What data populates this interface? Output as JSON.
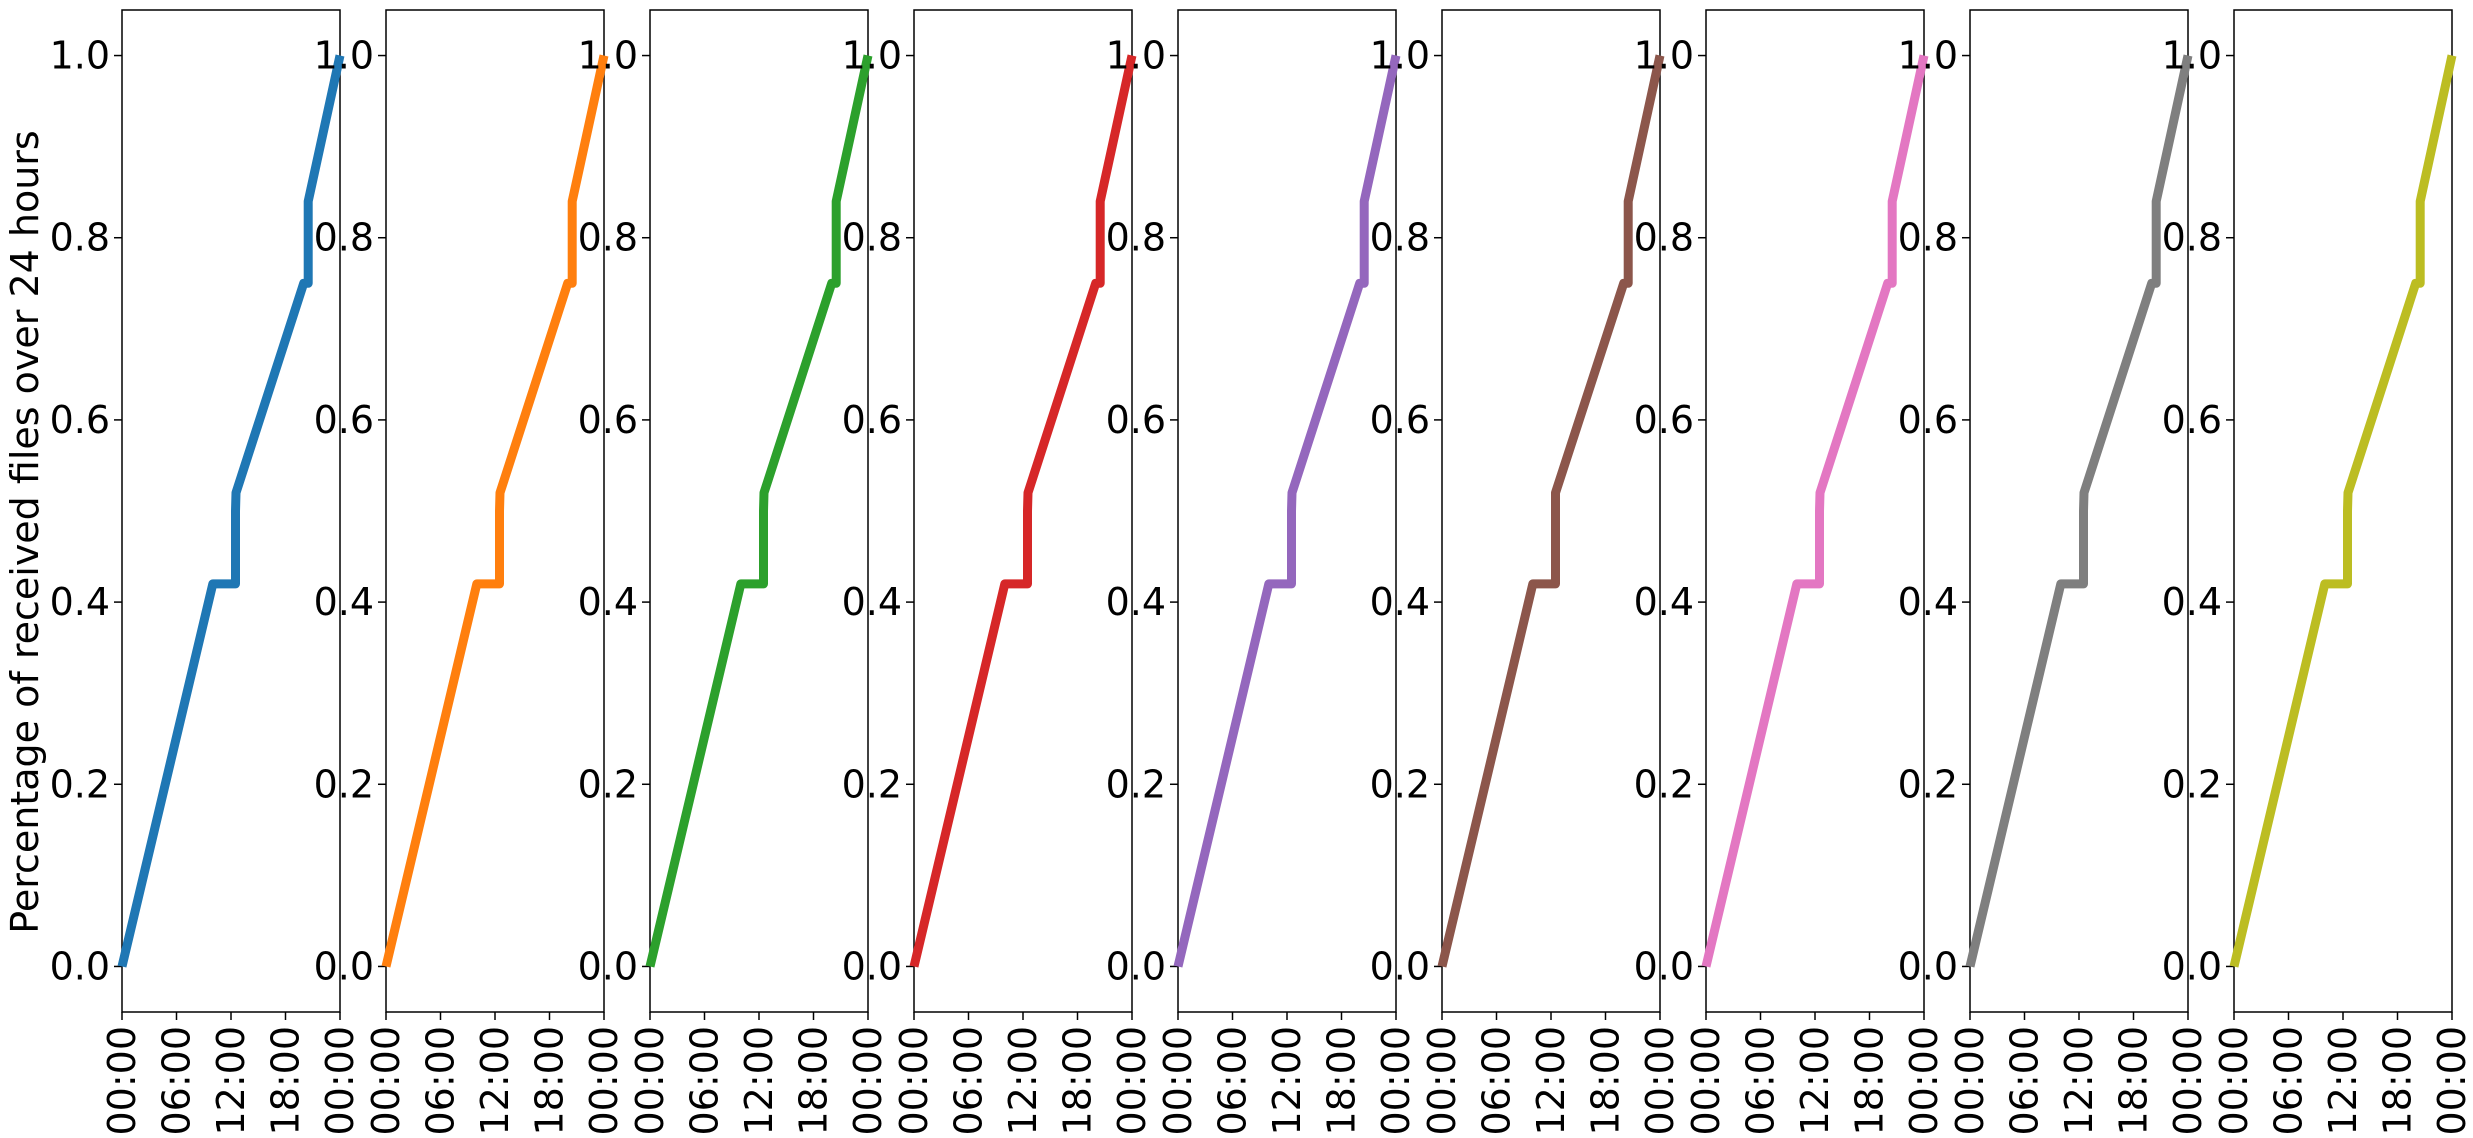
{
  "chart_data": {
    "type": "line",
    "ylabel": "Percentage of received files over 24 hours",
    "xlabel": "",
    "x_tick_labels": [
      "00:00",
      "06:00",
      "12:00",
      "18:00",
      "00:00"
    ],
    "y_tick_labels": [
      "0.0",
      "0.2",
      "0.4",
      "0.6",
      "0.8",
      "1.0"
    ],
    "y_ticks": [
      0.0,
      0.2,
      0.4,
      0.6,
      0.8,
      1.0
    ],
    "x_ticks_hours": [
      0,
      6,
      12,
      18,
      24
    ],
    "xlim_hours": [
      0,
      24
    ],
    "ylim": [
      -0.05,
      1.05
    ],
    "grid": false,
    "legend": "none",
    "panels": [
      {
        "color": "#1f77b4",
        "points": [
          [
            0,
            0.0
          ],
          [
            10,
            0.42
          ],
          [
            12.5,
            0.42
          ],
          [
            12.5,
            0.5
          ],
          [
            12.55,
            0.52
          ],
          [
            20,
            0.75
          ],
          [
            20.5,
            0.75
          ],
          [
            20.5,
            0.84
          ],
          [
            24,
            1.0
          ]
        ]
      },
      {
        "color": "#ff7f0e",
        "points": [
          [
            0,
            0.0
          ],
          [
            10,
            0.42
          ],
          [
            12.5,
            0.42
          ],
          [
            12.5,
            0.5
          ],
          [
            12.55,
            0.52
          ],
          [
            20,
            0.75
          ],
          [
            20.5,
            0.75
          ],
          [
            20.5,
            0.84
          ],
          [
            24,
            1.0
          ]
        ]
      },
      {
        "color": "#2ca02c",
        "points": [
          [
            0,
            0.0
          ],
          [
            10,
            0.42
          ],
          [
            12.5,
            0.42
          ],
          [
            12.5,
            0.5
          ],
          [
            12.55,
            0.52
          ],
          [
            20,
            0.75
          ],
          [
            20.5,
            0.75
          ],
          [
            20.5,
            0.84
          ],
          [
            24,
            1.0
          ]
        ]
      },
      {
        "color": "#d62728",
        "points": [
          [
            0,
            0.0
          ],
          [
            10,
            0.42
          ],
          [
            12.5,
            0.42
          ],
          [
            12.5,
            0.5
          ],
          [
            12.55,
            0.52
          ],
          [
            20,
            0.75
          ],
          [
            20.5,
            0.75
          ],
          [
            20.5,
            0.84
          ],
          [
            24,
            1.0
          ]
        ]
      },
      {
        "color": "#9467bd",
        "points": [
          [
            0,
            0.0
          ],
          [
            10,
            0.42
          ],
          [
            12.5,
            0.42
          ],
          [
            12.5,
            0.5
          ],
          [
            12.55,
            0.52
          ],
          [
            20,
            0.75
          ],
          [
            20.5,
            0.75
          ],
          [
            20.5,
            0.84
          ],
          [
            24,
            1.0
          ]
        ]
      },
      {
        "color": "#8c564b",
        "points": [
          [
            0,
            0.0
          ],
          [
            10,
            0.42
          ],
          [
            12.5,
            0.42
          ],
          [
            12.5,
            0.52
          ],
          [
            20,
            0.75
          ],
          [
            20.5,
            0.75
          ],
          [
            20.5,
            0.84
          ],
          [
            24,
            1.0
          ]
        ]
      },
      {
        "color": "#e377c2",
        "points": [
          [
            0,
            0.0
          ],
          [
            10,
            0.42
          ],
          [
            12.5,
            0.42
          ],
          [
            12.5,
            0.5
          ],
          [
            12.55,
            0.52
          ],
          [
            20,
            0.75
          ],
          [
            20.5,
            0.75
          ],
          [
            20.5,
            0.84
          ],
          [
            24,
            1.0
          ]
        ]
      },
      {
        "color": "#7f7f7f",
        "points": [
          [
            0,
            0.0
          ],
          [
            10,
            0.42
          ],
          [
            12.5,
            0.42
          ],
          [
            12.5,
            0.5
          ],
          [
            12.55,
            0.52
          ],
          [
            20,
            0.75
          ],
          [
            20.5,
            0.75
          ],
          [
            20.5,
            0.84
          ],
          [
            24,
            1.0
          ]
        ]
      },
      {
        "color": "#bcbd22",
        "points": [
          [
            0,
            0.0
          ],
          [
            10,
            0.42
          ],
          [
            12.5,
            0.42
          ],
          [
            12.5,
            0.5
          ],
          [
            12.55,
            0.52
          ],
          [
            20,
            0.75
          ],
          [
            20.5,
            0.75
          ],
          [
            20.5,
            0.84
          ],
          [
            24,
            1.0
          ]
        ]
      }
    ]
  }
}
